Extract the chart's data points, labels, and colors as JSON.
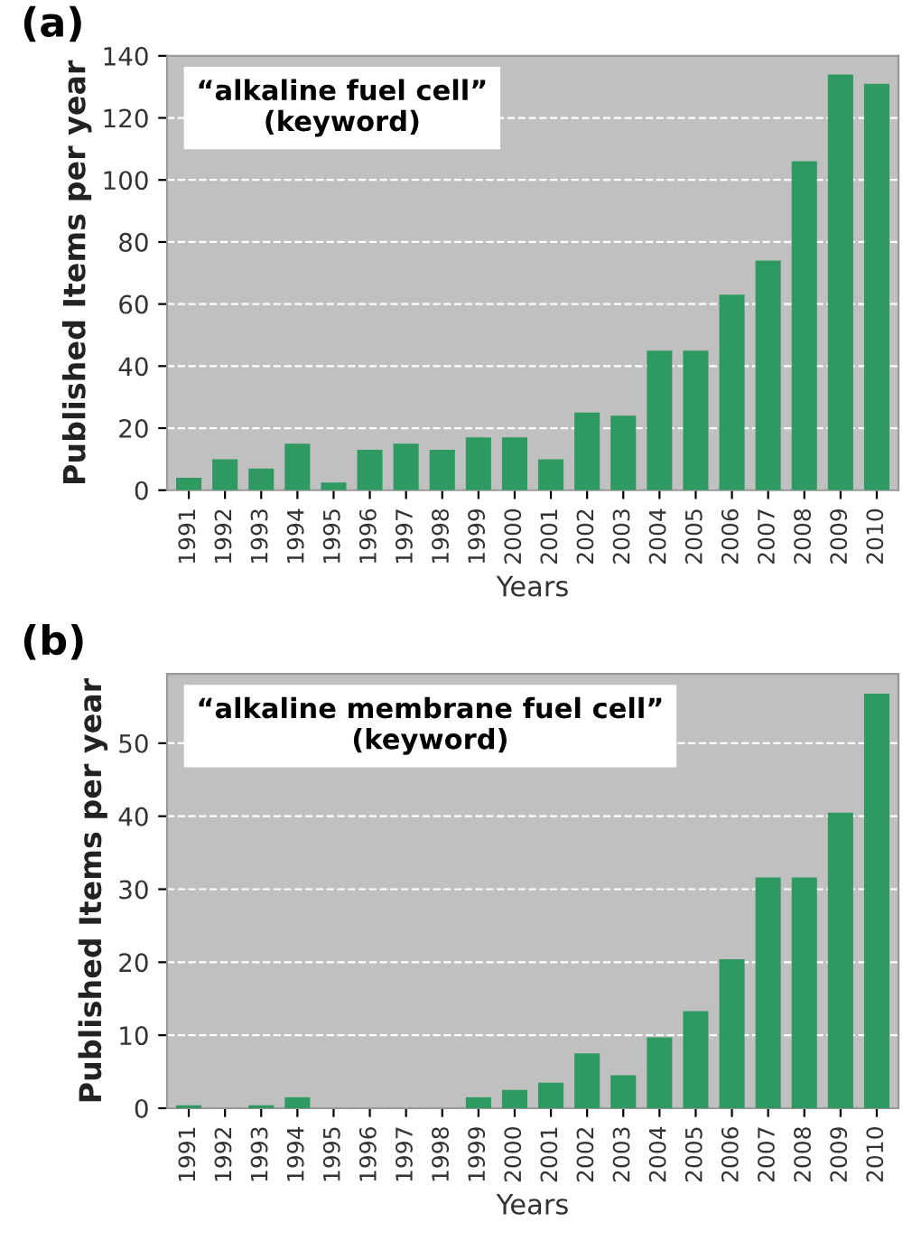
{
  "chart_data": [
    {
      "type": "bar",
      "categories": [
        "1991",
        "1992",
        "1993",
        "1994",
        "1995",
        "1996",
        "1997",
        "1998",
        "1999",
        "2000",
        "2001",
        "2002",
        "2003",
        "2004",
        "2005",
        "2006",
        "2007",
        "2008",
        "2009",
        "2010"
      ],
      "values": [
        4,
        10,
        7,
        15,
        2.5,
        13,
        15,
        13,
        17,
        17,
        10,
        25,
        24,
        45,
        45,
        63,
        74,
        106,
        134,
        131
      ],
      "color": "#2e9a62",
      "xlabel": "Years",
      "ylabel": "Published Items per year",
      "ylim": [
        0,
        140
      ],
      "yticks": [
        0,
        20,
        40,
        60,
        80,
        100,
        120,
        140
      ],
      "grid": "y",
      "annotations": [
        "(a)",
        "“alkaline fuel cell”\n(keyword)"
      ]
    },
    {
      "type": "bar",
      "categories": [
        "1991",
        "1992",
        "1993",
        "1994",
        "1995",
        "1996",
        "1997",
        "1998",
        "1999",
        "2000",
        "2001",
        "2002",
        "2003",
        "2004",
        "2005",
        "2006",
        "2007",
        "2008",
        "2009",
        "2010"
      ],
      "values": [
        0.4,
        0,
        0.4,
        1.5,
        0,
        0,
        0,
        0,
        1.5,
        2.5,
        3.5,
        7.5,
        4.5,
        9.7,
        13.3,
        20.4,
        31.6,
        31.6,
        40.5,
        56.8
      ],
      "color": "#2e9a62",
      "xlabel": "Years",
      "ylabel": "Published Items per year",
      "ylim": [
        0,
        59.5
      ],
      "yticks": [
        0,
        10,
        20,
        30,
        40,
        50
      ],
      "grid": "y",
      "annotations": [
        "(b)",
        "“alkaline membrane fuel cell”\n(keyword)"
      ]
    }
  ]
}
